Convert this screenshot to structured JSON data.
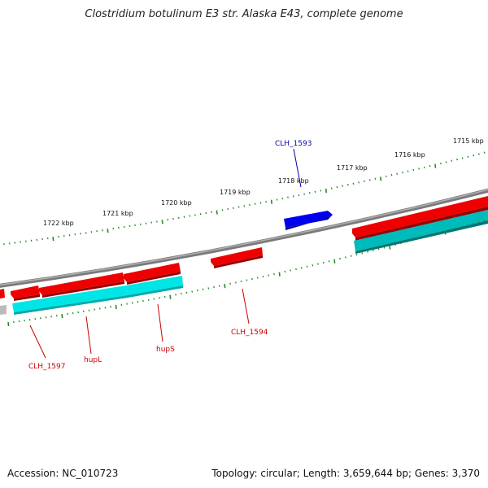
{
  "title": "Clostridium botulinum E3 str. Alaska E43, complete genome",
  "footer": {
    "accession": "Accession: NC_010723",
    "topology": "Topology: circular; Length: 3,659,644 bp; Genes: 3,370"
  },
  "scale_labels": [
    "1722 kbp",
    "1721 kbp",
    "1720 kbp",
    "1719 kbp",
    "1718 kbp",
    "1717 kbp",
    "1716 kbp",
    "1715 kbp"
  ],
  "gene_labels": {
    "clh_1593": "CLH_1593",
    "clh_1594": "CLH_1594",
    "clh_1597": "CLH_1597",
    "hupL": "hupL",
    "hupS": "hupS"
  },
  "colors": {
    "forward_cds": "#0000ee",
    "reverse_cds": "#ee0000",
    "gene": "#00e5e5",
    "backbone": "#888888",
    "ticks": "#2a8a2a",
    "label_red": "#cc0000",
    "label_blue": "#0000aa"
  }
}
